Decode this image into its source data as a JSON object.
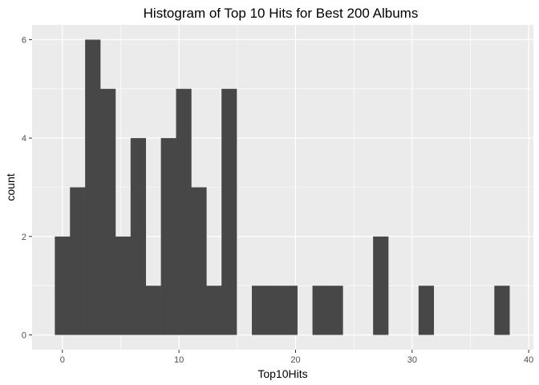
{
  "chart_data": {
    "type": "bar",
    "title": "Histogram of Top 10 Hits for Best 200 Albums",
    "xlabel": "Top10Hits",
    "ylabel": "count",
    "xlim": [
      -2.6,
      40.4
    ],
    "ylim": [
      -0.3,
      6.3
    ],
    "x_ticks": [
      0,
      10,
      20,
      30,
      40
    ],
    "y_ticks": [
      0,
      2,
      4,
      6
    ],
    "grid": true,
    "bin_width": 1.3,
    "bins": [
      {
        "x0": -0.65,
        "x1": 0.65,
        "count": 2
      },
      {
        "x0": 0.65,
        "x1": 1.95,
        "count": 3
      },
      {
        "x0": 1.95,
        "x1": 3.25,
        "count": 6
      },
      {
        "x0": 3.25,
        "x1": 4.55,
        "count": 5
      },
      {
        "x0": 4.55,
        "x1": 5.85,
        "count": 2
      },
      {
        "x0": 5.85,
        "x1": 7.15,
        "count": 4
      },
      {
        "x0": 7.15,
        "x1": 8.45,
        "count": 1
      },
      {
        "x0": 8.45,
        "x1": 9.75,
        "count": 4
      },
      {
        "x0": 9.75,
        "x1": 11.05,
        "count": 5
      },
      {
        "x0": 11.05,
        "x1": 12.35,
        "count": 3
      },
      {
        "x0": 12.35,
        "x1": 13.65,
        "count": 1
      },
      {
        "x0": 13.65,
        "x1": 14.95,
        "count": 5
      },
      {
        "x0": 14.95,
        "x1": 16.25,
        "count": 0
      },
      {
        "x0": 16.25,
        "x1": 17.55,
        "count": 1
      },
      {
        "x0": 17.55,
        "x1": 18.85,
        "count": 1
      },
      {
        "x0": 18.85,
        "x1": 20.15,
        "count": 1
      },
      {
        "x0": 20.15,
        "x1": 21.45,
        "count": 0
      },
      {
        "x0": 21.45,
        "x1": 22.75,
        "count": 1
      },
      {
        "x0": 22.75,
        "x1": 24.05,
        "count": 1
      },
      {
        "x0": 24.05,
        "x1": 25.35,
        "count": 0
      },
      {
        "x0": 25.35,
        "x1": 26.65,
        "count": 0
      },
      {
        "x0": 26.65,
        "x1": 27.95,
        "count": 2
      },
      {
        "x0": 27.95,
        "x1": 29.25,
        "count": 0
      },
      {
        "x0": 29.25,
        "x1": 30.55,
        "count": 0
      },
      {
        "x0": 30.55,
        "x1": 31.85,
        "count": 1
      },
      {
        "x0": 31.85,
        "x1": 33.15,
        "count": 0
      },
      {
        "x0": 33.15,
        "x1": 34.45,
        "count": 0
      },
      {
        "x0": 34.45,
        "x1": 35.75,
        "count": 0
      },
      {
        "x0": 35.75,
        "x1": 37.05,
        "count": 0
      },
      {
        "x0": 37.05,
        "x1": 38.35,
        "count": 1
      }
    ],
    "colors": {
      "panel_background": "#ebebeb",
      "grid_major": "#ffffff",
      "bar_fill": "#474747",
      "tick_mark": "#333333"
    }
  }
}
